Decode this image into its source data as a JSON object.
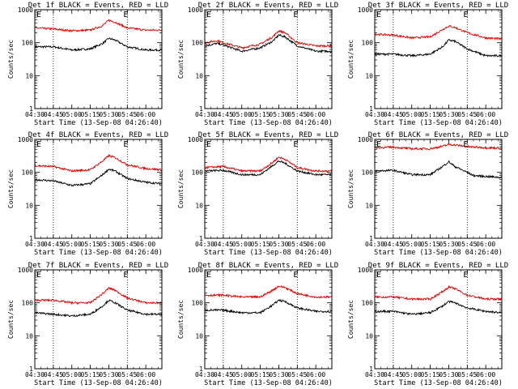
{
  "figure": {
    "type": "line",
    "ylabel": "Counts/sec",
    "xlabel": "Start Time (13-Sep-08 04:26:40)",
    "x_ticks": [
      "04:30",
      "04:45",
      "05:00",
      "05:15",
      "05:30",
      "05:45",
      "06:00"
    ],
    "x_range_min": [
      270,
      373
    ],
    "y_scale": "log",
    "y_range": [
      1,
      1000
    ],
    "y_ticks": [
      "1",
      "10",
      "100",
      "1000"
    ],
    "event_markers": [
      {
        "t_min": 285,
        "label": ""
      },
      {
        "t_min": 345,
        "label": "E"
      }
    ],
    "top_label": "E",
    "colors": {
      "events": "#000000",
      "lld": "#e00000"
    }
  },
  "chart_data": [
    {
      "type": "line",
      "title": "Det 1f BLACK = Events, RED = LLD",
      "series": [
        {
          "color": "#000000",
          "x": [
            270,
            285,
            300,
            315,
            325,
            330,
            335,
            345,
            360,
            373
          ],
          "y": [
            75,
            75,
            60,
            65,
            95,
            135,
            120,
            75,
            60,
            60
          ]
        },
        {
          "color": "#e00000",
          "x": [
            270,
            285,
            300,
            315,
            325,
            330,
            335,
            345,
            360,
            373
          ],
          "y": [
            280,
            260,
            230,
            240,
            330,
            480,
            420,
            280,
            240,
            240
          ]
        }
      ]
    },
    {
      "type": "line",
      "title": "Det 2f BLACK = Events, RED = LLD",
      "series": [
        {
          "color": "#000000",
          "x": [
            270,
            280,
            285,
            300,
            315,
            325,
            330,
            335,
            345,
            360,
            373
          ],
          "y": [
            80,
            95,
            85,
            55,
            70,
            110,
            170,
            150,
            80,
            55,
            55
          ]
        },
        {
          "color": "#e00000",
          "x": [
            270,
            280,
            285,
            300,
            315,
            325,
            330,
            335,
            345,
            360,
            373
          ],
          "y": [
            100,
            115,
            100,
            70,
            90,
            150,
            230,
            200,
            100,
            80,
            80
          ]
        }
      ]
    },
    {
      "type": "line",
      "title": "Det 3f BLACK = Events, RED = LLD",
      "series": [
        {
          "color": "#000000",
          "x": [
            270,
            285,
            300,
            315,
            325,
            330,
            335,
            345,
            360,
            373
          ],
          "y": [
            45,
            45,
            40,
            45,
            75,
            120,
            110,
            65,
            40,
            40
          ]
        },
        {
          "color": "#e00000",
          "x": [
            270,
            285,
            300,
            315,
            325,
            330,
            335,
            345,
            360,
            373
          ],
          "y": [
            180,
            170,
            140,
            150,
            250,
            320,
            290,
            200,
            140,
            130
          ]
        }
      ]
    },
    {
      "type": "line",
      "title": "Det 4f BLACK = Events, RED = LLD",
      "series": [
        {
          "color": "#000000",
          "x": [
            270,
            285,
            300,
            315,
            325,
            330,
            335,
            345,
            360,
            373
          ],
          "y": [
            60,
            55,
            40,
            45,
            85,
            125,
            110,
            65,
            50,
            45
          ]
        },
        {
          "color": "#e00000",
          "x": [
            270,
            285,
            300,
            315,
            325,
            330,
            335,
            345,
            360,
            373
          ],
          "y": [
            160,
            150,
            110,
            120,
            220,
            320,
            280,
            170,
            130,
            120
          ]
        }
      ]
    },
    {
      "type": "line",
      "title": "Det 5f BLACK = Events, RED = LLD",
      "series": [
        {
          "color": "#000000",
          "x": [
            270,
            285,
            300,
            315,
            325,
            330,
            335,
            345,
            360,
            373
          ],
          "y": [
            110,
            115,
            85,
            85,
            160,
            220,
            190,
            110,
            85,
            85
          ]
        },
        {
          "color": "#e00000",
          "x": [
            270,
            285,
            300,
            315,
            325,
            330,
            335,
            345,
            360,
            373
          ],
          "y": [
            140,
            150,
            110,
            110,
            200,
            290,
            250,
            140,
            110,
            110
          ]
        }
      ]
    },
    {
      "type": "line",
      "title": "Det 6f BLACK = Events, RED = LLD",
      "series": [
        {
          "color": "#000000",
          "x": [
            270,
            285,
            300,
            315,
            325,
            330,
            335,
            345,
            350,
            360,
            373
          ],
          "y": [
            110,
            115,
            85,
            85,
            150,
            210,
            150,
            100,
            80,
            75,
            70
          ]
        },
        {
          "color": "#e00000",
          "x": [
            270,
            285,
            300,
            315,
            325,
            330,
            335,
            345,
            360,
            373
          ],
          "y": [
            560,
            580,
            520,
            520,
            620,
            700,
            680,
            600,
            560,
            540
          ]
        }
      ]
    },
    {
      "type": "line",
      "title": "Det 7f BLACK = Events, RED = LLD",
      "series": [
        {
          "color": "#000000",
          "x": [
            270,
            285,
            300,
            315,
            325,
            330,
            335,
            345,
            360,
            373
          ],
          "y": [
            50,
            45,
            40,
            45,
            80,
            120,
            100,
            60,
            45,
            45
          ]
        },
        {
          "color": "#e00000",
          "x": [
            270,
            285,
            300,
            315,
            325,
            330,
            335,
            345,
            360,
            373
          ],
          "y": [
            120,
            120,
            100,
            100,
            190,
            280,
            240,
            140,
            100,
            100
          ]
        }
      ]
    },
    {
      "type": "line",
      "title": "Det 8f BLACK = Events, RED = LLD",
      "series": [
        {
          "color": "#000000",
          "x": [
            270,
            285,
            300,
            315,
            325,
            330,
            335,
            345,
            360,
            373
          ],
          "y": [
            60,
            60,
            50,
            50,
            85,
            120,
            110,
            70,
            55,
            55
          ]
        },
        {
          "color": "#e00000",
          "x": [
            270,
            285,
            300,
            315,
            325,
            330,
            335,
            345,
            360,
            373
          ],
          "y": [
            170,
            170,
            150,
            150,
            240,
            320,
            290,
            190,
            150,
            150
          ]
        }
      ]
    },
    {
      "type": "line",
      "title": "Det 9f BLACK = Events, RED = LLD",
      "series": [
        {
          "color": "#000000",
          "x": [
            270,
            285,
            300,
            315,
            325,
            330,
            335,
            345,
            360,
            373
          ],
          "y": [
            55,
            55,
            45,
            50,
            80,
            110,
            100,
            70,
            55,
            50
          ]
        },
        {
          "color": "#e00000",
          "x": [
            270,
            285,
            300,
            315,
            325,
            330,
            335,
            345,
            360,
            373
          ],
          "y": [
            150,
            150,
            130,
            130,
            220,
            300,
            270,
            170,
            130,
            130
          ]
        }
      ]
    }
  ]
}
